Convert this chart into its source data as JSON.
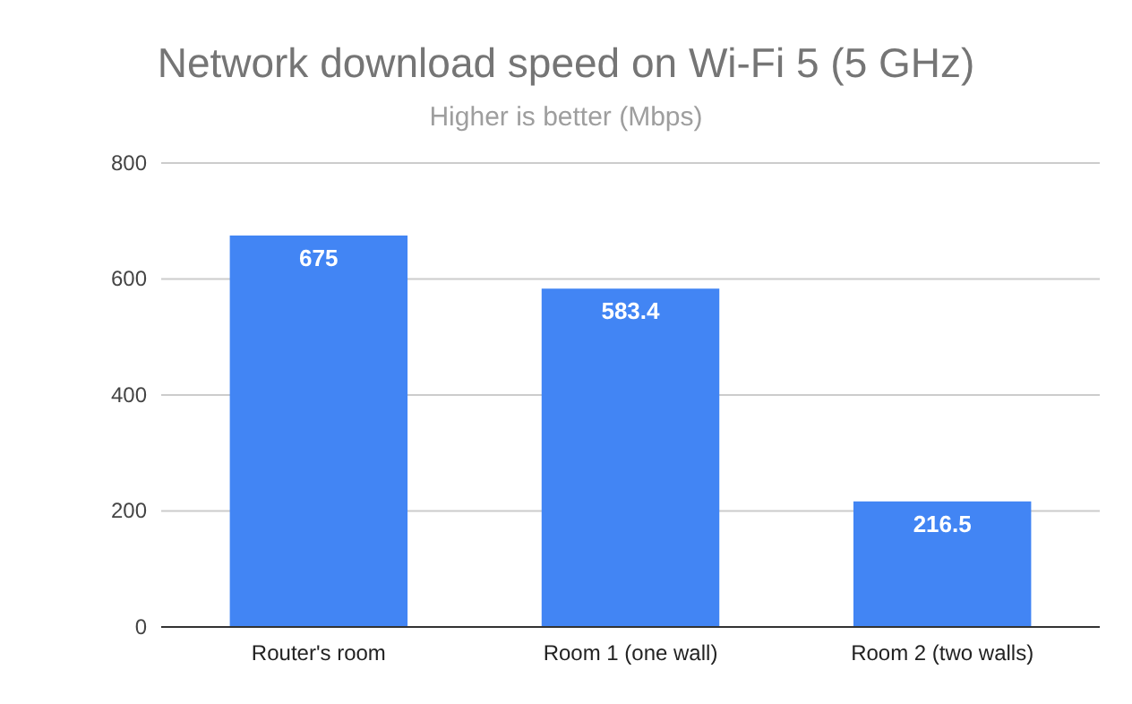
{
  "chart_data": {
    "type": "bar",
    "title": "Network download speed on Wi-Fi 5 (5 GHz)",
    "subtitle": "Higher is better (Mbps)",
    "categories": [
      "Router's room",
      "Room 1 (one wall)",
      "Room 2 (two walls)"
    ],
    "values": [
      675,
      583.4,
      216.5
    ],
    "color": "#4285f4",
    "ylim": [
      0,
      800
    ],
    "yticks": [
      0,
      200,
      400,
      600,
      800
    ],
    "grid": "y",
    "data_labels": true
  }
}
